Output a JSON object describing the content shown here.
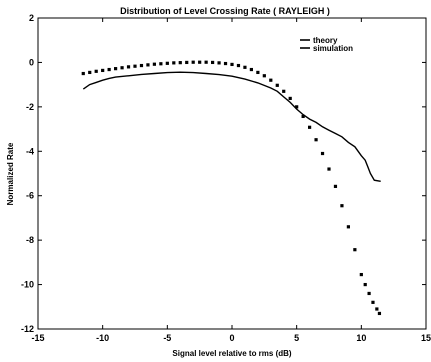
{
  "chart_data": {
    "type": "line",
    "title": "Distribution of Level Crossing Rate ( RAYLEIGH )",
    "xlabel": "Signal level relative to rms (dB)",
    "ylabel": "Normalized Rate",
    "xlim": [
      -15,
      15
    ],
    "ylim": [
      -12,
      2
    ],
    "xticks": [
      "-15",
      "-10",
      "-5",
      "0",
      "5",
      "10",
      "15"
    ],
    "yticks": [
      "2",
      "0",
      "-2",
      "-4",
      "-6",
      "-8",
      "-10",
      "-12"
    ],
    "grid": false,
    "legend_position": "top-right",
    "series": [
      {
        "name": "theory",
        "style": "dotted-markers",
        "color": "#000000",
        "x": [
          -11.5,
          -11,
          -10.5,
          -10,
          -9.5,
          -9,
          -8.5,
          -8,
          -7.5,
          -7,
          -6.5,
          -6,
          -5.5,
          -5,
          -4.5,
          -4,
          -3.5,
          -3,
          -2.5,
          -2,
          -1.5,
          -1,
          -0.5,
          0,
          0.5,
          1,
          1.5,
          2,
          2.5,
          3,
          3.5,
          4,
          4.5,
          5,
          5.5,
          6,
          6.5,
          7,
          7.5,
          8,
          8.5,
          9,
          9.5,
          10,
          10.3,
          10.6,
          10.9,
          11.2,
          11.4
        ],
        "y": [
          -0.5,
          -0.45,
          -0.4,
          -0.36,
          -0.32,
          -0.28,
          -0.24,
          -0.2,
          -0.17,
          -0.14,
          -0.11,
          -0.08,
          -0.06,
          -0.04,
          -0.02,
          -0.01,
          0,
          0.01,
          0.01,
          0.01,
          0,
          -0.02,
          -0.05,
          -0.09,
          -0.14,
          -0.22,
          -0.32,
          -0.45,
          -0.6,
          -0.8,
          -1.03,
          -1.3,
          -1.62,
          -2.0,
          -2.43,
          -2.92,
          -3.48,
          -4.1,
          -4.8,
          -5.58,
          -6.45,
          -7.4,
          -8.43,
          -9.55,
          -10.0,
          -10.4,
          -10.8,
          -11.1,
          -11.3
        ]
      },
      {
        "name": "simulation",
        "style": "solid",
        "color": "#000000",
        "x": [
          -11.5,
          -11,
          -10.5,
          -10,
          -9.5,
          -9,
          -8,
          -7,
          -6,
          -5,
          -4,
          -3,
          -2,
          -1,
          0,
          1,
          2,
          3,
          3.5,
          4,
          4.5,
          5,
          5.5,
          6,
          6.5,
          7,
          7.5,
          8,
          8.5,
          9,
          9.5,
          10,
          10.3,
          10.5,
          10.7,
          11,
          11.5
        ],
        "y": [
          -1.2,
          -1.0,
          -0.9,
          -0.8,
          -0.72,
          -0.66,
          -0.6,
          -0.54,
          -0.5,
          -0.46,
          -0.44,
          -0.46,
          -0.5,
          -0.55,
          -0.62,
          -0.75,
          -0.92,
          -1.15,
          -1.3,
          -1.55,
          -1.8,
          -2.1,
          -2.35,
          -2.55,
          -2.7,
          -2.9,
          -3.05,
          -3.2,
          -3.35,
          -3.6,
          -3.8,
          -4.2,
          -4.4,
          -4.7,
          -5.0,
          -5.3,
          -5.35
        ]
      }
    ]
  }
}
